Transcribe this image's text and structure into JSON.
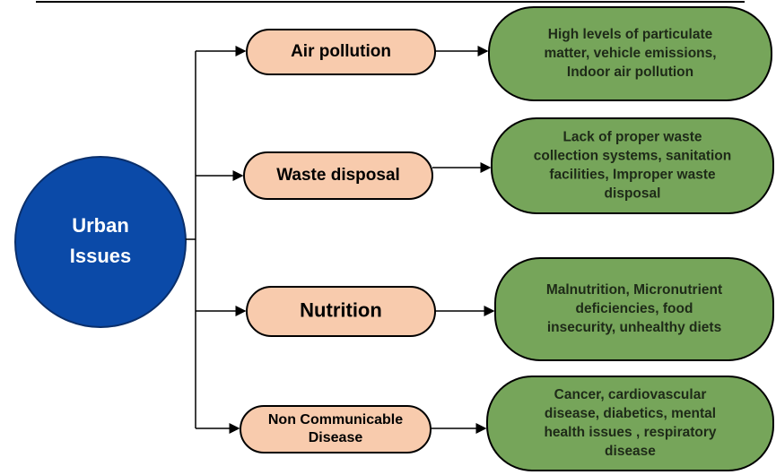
{
  "center": {
    "label": [
      "Urban",
      "Issues"
    ]
  },
  "issues": [
    {
      "label": [
        "Air pollution"
      ],
      "details": [
        "High levels of particulate",
        "matter, vehicle emissions,",
        "Indoor air pollution"
      ]
    },
    {
      "label": [
        "Waste disposal"
      ],
      "details": [
        "Lack of proper waste",
        "collection systems, sanitation",
        "facilities, Improper waste",
        "disposal"
      ]
    },
    {
      "label": [
        "Nutrition"
      ],
      "details": [
        "Malnutrition, Micronutrient",
        "deficiencies, food",
        "insecurity, unhealthy diets"
      ]
    },
    {
      "label": [
        "Non Communicable",
        "Disease"
      ],
      "details": [
        "Cancer, cardiovascular",
        "disease, diabetics, mental",
        "health issues , respiratory",
        "disease"
      ]
    }
  ]
}
